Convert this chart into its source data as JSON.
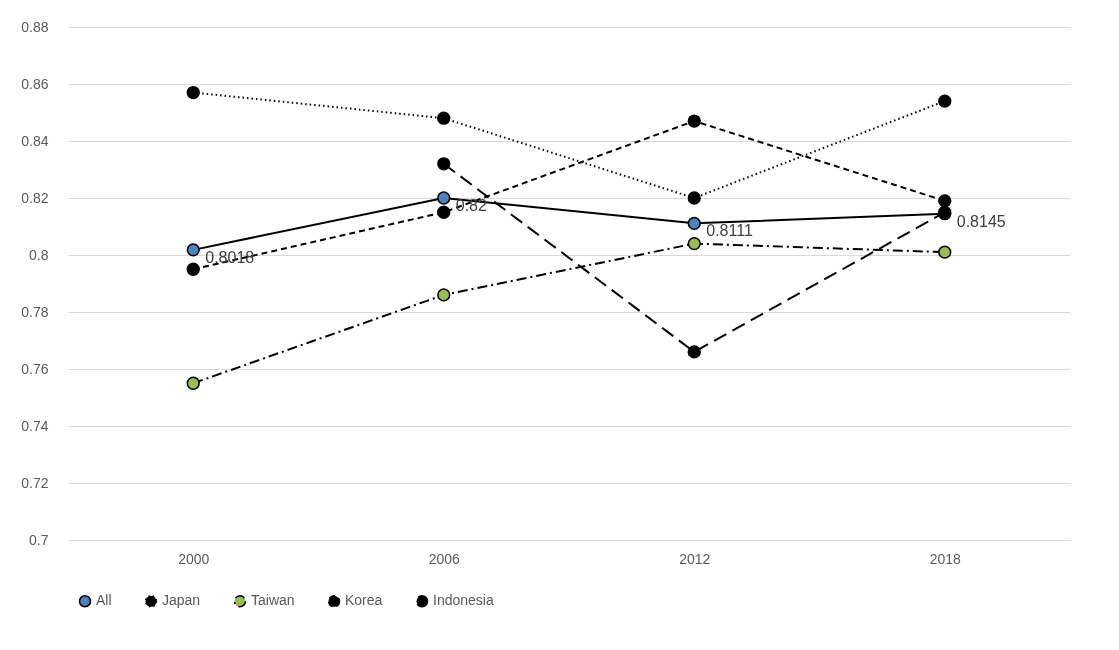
{
  "chart_data": {
    "type": "line",
    "categories": [
      "2000",
      "2006",
      "2012",
      "2018"
    ],
    "series": [
      {
        "name": "All",
        "color": "#4f81bd",
        "line_style": "solid",
        "values": [
          0.8018,
          0.82,
          0.8111,
          0.8145
        ],
        "value_labels": [
          "0.8018",
          "0.82",
          "0.8111",
          "0.8145"
        ]
      },
      {
        "name": "Japan",
        "color": "#000000",
        "line_style": "dotted",
        "values": [
          0.857,
          0.848,
          0.82,
          0.854
        ]
      },
      {
        "name": "Taiwan",
        "color": "#9bbb59",
        "line_style": "dashdot",
        "values": [
          0.755,
          0.786,
          0.804,
          0.801
        ]
      },
      {
        "name": "Korea",
        "color": "#000000",
        "line_style": "dashed",
        "values": [
          0.795,
          0.815,
          0.847,
          0.819
        ]
      },
      {
        "name": "Indonesia",
        "color": "#000000",
        "line_style": "longdash",
        "values": [
          null,
          0.832,
          0.766,
          0.815
        ]
      }
    ],
    "ylim": [
      0.7,
      0.88
    ],
    "yticks": [
      0.7,
      0.72,
      0.74,
      0.76,
      0.78,
      0.8,
      0.82,
      0.84,
      0.86,
      0.88
    ],
    "grid": "y",
    "legend": "bottom",
    "marker": "circle"
  }
}
